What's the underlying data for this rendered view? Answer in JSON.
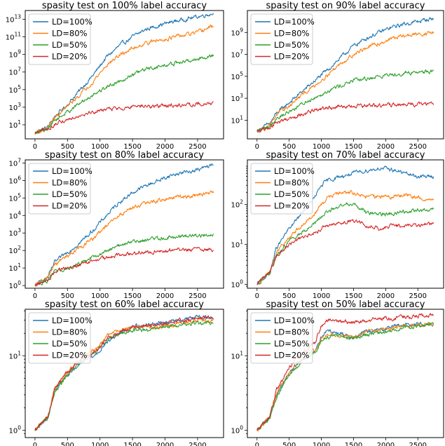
{
  "chart_data": [
    {
      "type": "line",
      "title": "spasity test on 100% label accuracy",
      "yscale": "log",
      "xlim": [
        -150,
        2900
      ],
      "ylim": [
        0.25,
        100000000000000.0
      ],
      "xticks": [
        0,
        500,
        1000,
        1500,
        2000,
        2500
      ],
      "yticks": [
        10,
        1000,
        100000,
        10000000,
        1000000000,
        100000000000,
        10000000000000
      ],
      "ytick_labels": [
        "10^1",
        "10^3",
        "10^5",
        "10^7",
        "10^9",
        "10^11",
        "10^13"
      ],
      "legend_position": "upper left",
      "series": [
        {
          "name": "LD=100%",
          "color": "#1f77b4",
          "x": [
            0,
            200,
            300,
            500,
            700,
            900,
            1100,
            1300,
            1500,
            1700,
            1900,
            2100,
            2300,
            2500,
            2750
          ],
          "y": [
            1,
            6,
            80,
            2000,
            100000,
            5000000,
            500000000,
            10000000000,
            100000000000,
            700000000000,
            2000000000000,
            5000000000000,
            10000000000000,
            20000000000000,
            50000000000000
          ]
        },
        {
          "name": "LD=80%",
          "color": "#ff7f0e",
          "x": [
            0,
            200,
            300,
            500,
            700,
            900,
            1100,
            1300,
            1500,
            1700,
            1900,
            2100,
            2300,
            2500,
            2750
          ],
          "y": [
            1,
            5,
            60,
            1200,
            30000,
            1000000,
            60000000,
            800000000,
            5000000000,
            20000000000,
            40000000000,
            80000000000,
            150000000000,
            300000000000,
            2000000000000
          ]
        },
        {
          "name": "LD=50%",
          "color": "#2ca02c",
          "x": [
            0,
            200,
            300,
            500,
            700,
            900,
            1100,
            1300,
            1500,
            1700,
            1900,
            2100,
            2300,
            2500,
            2750
          ],
          "y": [
            1,
            4,
            30,
            300,
            3000,
            30000,
            200000,
            1000000,
            5000000,
            20000000,
            40000000,
            80000000,
            150000000,
            300000000,
            800000000
          ]
        },
        {
          "name": "LD=20%",
          "color": "#d62728",
          "x": [
            0,
            200,
            300,
            500,
            700,
            900,
            1100,
            1300,
            1500,
            1700,
            1900,
            2100,
            2300,
            2500,
            2750
          ],
          "y": [
            1,
            3,
            10,
            40,
            150,
            300,
            600,
            800,
            1000,
            1200,
            1400,
            1600,
            1800,
            2200,
            3000
          ]
        }
      ]
    },
    {
      "type": "line",
      "title": "spasity test on 90% label accuracy",
      "yscale": "log",
      "xlim": [
        -150,
        2900
      ],
      "ylim": [
        0.2,
        100000000000.0
      ],
      "xticks": [
        0,
        500,
        1000,
        1500,
        2000,
        2500
      ],
      "yticks": [
        10,
        1000,
        100000,
        10000000,
        1000000000
      ],
      "ytick_labels": [
        "10^1",
        "10^3",
        "10^5",
        "10^7",
        "10^9"
      ],
      "legend_position": "upper left",
      "series": [
        {
          "name": "LD=100%",
          "color": "#1f77b4",
          "x": [
            0,
            200,
            300,
            500,
            700,
            900,
            1100,
            1300,
            1500,
            1700,
            1900,
            2100,
            2300,
            2500,
            2750
          ],
          "y": [
            1,
            5,
            40,
            400,
            4000,
            40000,
            400000,
            5000000,
            60000000,
            300000000,
            1000000000,
            3000000000,
            6000000000,
            10000000000,
            20000000000
          ]
        },
        {
          "name": "LD=80%",
          "color": "#ff7f0e",
          "x": [
            0,
            200,
            300,
            500,
            700,
            900,
            1100,
            1300,
            1500,
            1700,
            1900,
            2100,
            2300,
            2500,
            2750
          ],
          "y": [
            1,
            4,
            30,
            200,
            2000,
            15000,
            150000,
            1500000,
            10000000,
            40000000,
            100000000,
            300000000,
            500000000,
            700000000,
            1000000000
          ]
        },
        {
          "name": "LD=50%",
          "color": "#2ca02c",
          "x": [
            0,
            200,
            300,
            500,
            700,
            900,
            1100,
            1300,
            1500,
            1700,
            1900,
            2100,
            2300,
            2500,
            2750
          ],
          "y": [
            1,
            3,
            15,
            60,
            300,
            1200,
            5000,
            15000,
            40000,
            60000,
            100000,
            150000,
            200000,
            250000,
            300000
          ]
        },
        {
          "name": "LD=20%",
          "color": "#d62728",
          "x": [
            0,
            200,
            300,
            500,
            700,
            900,
            1100,
            1300,
            1500,
            1700,
            1900,
            2100,
            2300,
            2500,
            2750
          ],
          "y": [
            1,
            2,
            6,
            15,
            40,
            80,
            130,
            160,
            180,
            200,
            220,
            240,
            260,
            280,
            300
          ]
        }
      ]
    },
    {
      "type": "line",
      "title": "spasity test on 80% label accuracy",
      "yscale": "log",
      "xlim": [
        -150,
        2900
      ],
      "ylim": [
        0.7,
        15000000.0
      ],
      "xticks": [
        0,
        500,
        1000,
        1500,
        2000,
        2500
      ],
      "yticks": [
        1,
        10,
        100,
        1000,
        10000,
        100000,
        1000000,
        10000000
      ],
      "ytick_labels": [
        "10^0",
        "10^1",
        "10^2",
        "10^3",
        "10^4",
        "10^5",
        "10^6",
        "10^7"
      ],
      "legend_position": "upper left",
      "series": [
        {
          "name": "LD=100%",
          "color": "#1f77b4",
          "x": [
            0,
            200,
            300,
            500,
            700,
            900,
            1100,
            1300,
            1500,
            1700,
            1900,
            2100,
            2300,
            2500,
            2750
          ],
          "y": [
            1,
            3,
            20,
            80,
            300,
            1500,
            10000,
            60000,
            200000,
            500000,
            1000000,
            2000000,
            3000000,
            4000000,
            8000000
          ]
        },
        {
          "name": "LD=80%",
          "color": "#ff7f0e",
          "x": [
            0,
            200,
            300,
            500,
            700,
            900,
            1100,
            1300,
            1500,
            1700,
            1900,
            2100,
            2300,
            2500,
            2750
          ],
          "y": [
            1,
            3,
            15,
            50,
            150,
            500,
            2500,
            10000,
            30000,
            50000,
            70000,
            100000,
            120000,
            150000,
            200000
          ]
        },
        {
          "name": "LD=50%",
          "color": "#2ca02c",
          "x": [
            0,
            200,
            300,
            500,
            700,
            900,
            1100,
            1300,
            1500,
            1700,
            1900,
            2100,
            2300,
            2500,
            2750
          ],
          "y": [
            1,
            2,
            6,
            10,
            20,
            40,
            90,
            200,
            300,
            400,
            500,
            600,
            700,
            800,
            800
          ]
        },
        {
          "name": "LD=20%",
          "color": "#d62728",
          "x": [
            0,
            200,
            300,
            500,
            700,
            900,
            1100,
            1300,
            1500,
            1700,
            1900,
            2100,
            2300,
            2500,
            2750
          ],
          "y": [
            1,
            2,
            6,
            10,
            15,
            25,
            40,
            60,
            70,
            80,
            90,
            100,
            110,
            120,
            120
          ]
        }
      ]
    },
    {
      "type": "line",
      "title": "spasity test on 70% label accuracy",
      "yscale": "log",
      "xlim": [
        -150,
        2900
      ],
      "ylim": [
        0.8,
        1300
      ],
      "xticks": [
        0,
        500,
        1000,
        1500,
        2000,
        2500
      ],
      "yticks": [
        1,
        10,
        100
      ],
      "ytick_labels": [
        "10^0",
        "10^1",
        "10^2"
      ],
      "legend_position": "upper left",
      "series": [
        {
          "name": "LD=100%",
          "color": "#1f77b4",
          "x": [
            0,
            200,
            300,
            500,
            700,
            900,
            1000,
            1100,
            1300,
            1500,
            1700,
            1900,
            2100,
            2300,
            2500,
            2750
          ],
          "y": [
            1,
            2,
            8,
            25,
            60,
            150,
            300,
            400,
            500,
            600,
            700,
            800,
            750,
            600,
            500,
            500
          ]
        },
        {
          "name": "LD=80%",
          "color": "#ff7f0e",
          "x": [
            0,
            200,
            300,
            500,
            700,
            900,
            1000,
            1100,
            1300,
            1500,
            1700,
            1900,
            2100,
            2300,
            2500,
            2750
          ],
          "y": [
            1,
            2,
            6,
            15,
            30,
            60,
            100,
            150,
            200,
            200,
            150,
            160,
            150,
            170,
            150,
            120
          ]
        },
        {
          "name": "LD=50%",
          "color": "#2ca02c",
          "x": [
            0,
            200,
            300,
            500,
            700,
            900,
            1000,
            1100,
            1300,
            1500,
            1700,
            1900,
            2100,
            2300,
            2500,
            2750
          ],
          "y": [
            1,
            2,
            5,
            12,
            20,
            35,
            50,
            70,
            90,
            110,
            60,
            55,
            60,
            65,
            70,
            80
          ]
        },
        {
          "name": "LD=20%",
          "color": "#d62728",
          "x": [
            0,
            200,
            300,
            500,
            700,
            900,
            1000,
            1100,
            1300,
            1500,
            1700,
            1900,
            2100,
            2300,
            2500,
            2750
          ],
          "y": [
            1,
            2,
            5,
            10,
            15,
            20,
            25,
            30,
            35,
            40,
            30,
            25,
            30,
            28,
            30,
            33
          ]
        }
      ]
    },
    {
      "type": "line",
      "title": "spasity test on 60% label accuracy",
      "yscale": "log",
      "xlim": [
        -150,
        2900
      ],
      "ylim": [
        0.8,
        42
      ],
      "xticks": [
        0,
        500,
        1000,
        1500,
        2000,
        2500
      ],
      "yticks": [
        1,
        10
      ],
      "ytick_labels": [
        "10^0",
        "10^1"
      ],
      "legend_position": "upper left",
      "series": [
        {
          "name": "LD=100%",
          "color": "#1f77b4",
          "x": [
            0,
            200,
            300,
            500,
            700,
            900,
            1000,
            1100,
            1300,
            1500,
            1700,
            1900,
            2100,
            2300,
            2500,
            2750
          ],
          "y": [
            1,
            1.5,
            3.5,
            5.5,
            8,
            10,
            12,
            15,
            20,
            25,
            26,
            27,
            29,
            31,
            33,
            32
          ]
        },
        {
          "name": "LD=80%",
          "color": "#ff7f0e",
          "x": [
            0,
            200,
            300,
            500,
            700,
            900,
            1000,
            1100,
            1300,
            1500,
            1700,
            1900,
            2100,
            2300,
            2500,
            2750
          ],
          "y": [
            1,
            1.5,
            3.5,
            6,
            9,
            12,
            14,
            18,
            22,
            24,
            25,
            24,
            26,
            28,
            30,
            30
          ]
        },
        {
          "name": "LD=50%",
          "color": "#2ca02c",
          "x": [
            0,
            200,
            300,
            500,
            700,
            900,
            1000,
            1100,
            1300,
            1500,
            1700,
            1900,
            2100,
            2300,
            2500,
            2750
          ],
          "y": [
            1,
            1.5,
            3.2,
            5.5,
            8,
            11,
            13,
            16,
            20,
            22,
            22,
            23,
            25,
            26,
            27,
            27
          ]
        },
        {
          "name": "LD=20%",
          "color": "#d62728",
          "x": [
            0,
            200,
            300,
            500,
            700,
            900,
            1000,
            1100,
            1300,
            1500,
            1700,
            1900,
            2100,
            2300,
            2500,
            2750
          ],
          "y": [
            1,
            1.5,
            3.5,
            6,
            8.5,
            11,
            13,
            17,
            21,
            24,
            25,
            26,
            28,
            30,
            32,
            33
          ]
        }
      ]
    },
    {
      "type": "line",
      "title": "spasity test on 50% label accuracy",
      "yscale": "log",
      "xlim": [
        -150,
        2900
      ],
      "ylim": [
        0.8,
        42
      ],
      "xticks": [
        0,
        500,
        1000,
        1500,
        2000,
        2500
      ],
      "yticks": [
        1,
        10
      ],
      "ytick_labels": [
        "10^0",
        "10^1"
      ],
      "legend_position": "upper left",
      "series": [
        {
          "name": "LD=100%",
          "color": "#1f77b4",
          "x": [
            0,
            200,
            300,
            500,
            700,
            900,
            1000,
            1100,
            1300,
            1500,
            1700,
            1900,
            2100,
            2300,
            2500,
            2750
          ],
          "y": [
            1,
            1.5,
            3,
            6,
            9,
            12,
            18,
            22,
            20,
            18,
            21,
            22,
            25,
            26,
            27,
            26
          ]
        },
        {
          "name": "LD=80%",
          "color": "#ff7f0e",
          "x": [
            0,
            200,
            300,
            500,
            700,
            900,
            1000,
            1100,
            1300,
            1500,
            1700,
            1900,
            2100,
            2300,
            2500,
            2750
          ],
          "y": [
            1,
            1.5,
            3,
            6,
            9,
            12,
            17,
            20,
            19,
            18,
            21,
            22,
            24,
            25,
            26,
            27
          ]
        },
        {
          "name": "LD=50%",
          "color": "#2ca02c",
          "x": [
            0,
            200,
            300,
            500,
            700,
            900,
            1000,
            1100,
            1300,
            1500,
            1700,
            1900,
            2100,
            2300,
            2500,
            2750
          ],
          "y": [
            1,
            1.5,
            2.8,
            5.5,
            8.5,
            11,
            16,
            18,
            18,
            17,
            19,
            20,
            22,
            24,
            25,
            26
          ]
        },
        {
          "name": "LD=20%",
          "color": "#d62728",
          "x": [
            0,
            200,
            300,
            500,
            700,
            900,
            1000,
            1100,
            1300,
            1500,
            1700,
            1900,
            2100,
            2300,
            2500,
            2750
          ],
          "y": [
            1,
            1.5,
            3.5,
            7,
            11,
            15,
            25,
            30,
            29,
            28,
            30,
            31,
            32,
            33,
            34,
            35
          ]
        }
      ]
    }
  ]
}
